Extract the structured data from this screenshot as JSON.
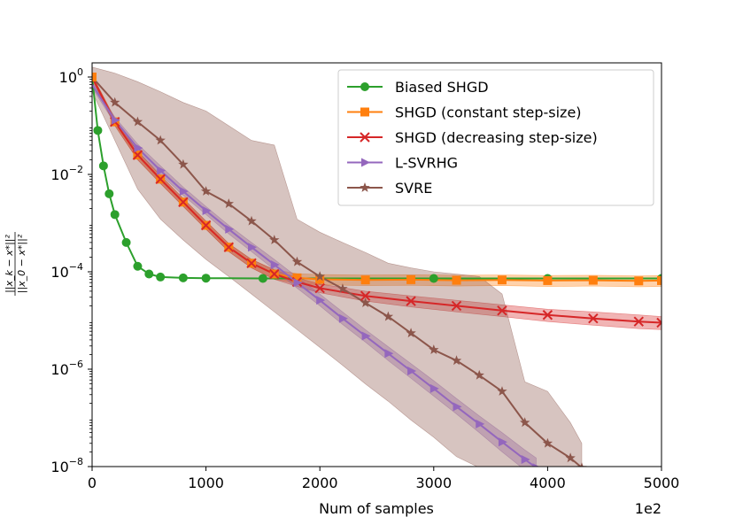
{
  "chart_data": {
    "type": "line",
    "title": "",
    "xlabel": "Num of samples",
    "x_offset_label": "1e2",
    "ylabel_numerator": "||x_k − x*||²",
    "ylabel_denominator": "||x_0 − x*||²",
    "yscale": "log",
    "xlim": [
      0,
      5000
    ],
    "ylim": [
      1e-08,
      2
    ],
    "x_ticks": [
      0,
      1000,
      2000,
      3000,
      4000,
      5000
    ],
    "x_tick_labels": [
      "0",
      "1000",
      "2000",
      "3000",
      "4000",
      "5000"
    ],
    "y_ticks": [
      1,
      0.01,
      0.0001,
      1e-06,
      1e-08
    ],
    "y_tick_labels": [
      {
        "base": "10",
        "exp": "0"
      },
      {
        "base": "10",
        "exp": "−2"
      },
      {
        "base": "10",
        "exp": "−4"
      },
      {
        "base": "10",
        "exp": "−6"
      },
      {
        "base": "10",
        "exp": "−8"
      }
    ],
    "grid": false,
    "legend_position": "top-right",
    "series": [
      {
        "name": "Biased SHGD",
        "color": "#2ca02c",
        "marker": "circle",
        "x": [
          0,
          50,
          100,
          150,
          200,
          300,
          400,
          500,
          600,
          800,
          1000,
          1500,
          2000,
          3000,
          4000,
          5000
        ],
        "y": [
          1,
          0.08,
          0.015,
          0.004,
          0.0015,
          0.0004,
          0.00013,
          9e-05,
          7.8e-05,
          7.5e-05,
          7.4e-05,
          7.3e-05,
          7.3e-05,
          7.3e-05,
          7.3e-05,
          7.3e-05
        ],
        "band_lower": [],
        "band_upper": []
      },
      {
        "name": "SHGD (constant step-size)",
        "color": "#ff7f0e",
        "marker": "square",
        "x": [
          0,
          200,
          400,
          600,
          800,
          1000,
          1200,
          1400,
          1600,
          1800,
          2000,
          2400,
          2800,
          3200,
          3600,
          4000,
          4400,
          4800,
          5000
        ],
        "y": [
          1,
          0.12,
          0.025,
          0.008,
          0.0027,
          0.0009,
          0.00032,
          0.00015,
          9e-05,
          7.5e-05,
          7e-05,
          6.8e-05,
          6.9e-05,
          6.7e-05,
          6.8e-05,
          6.6e-05,
          6.7e-05,
          6.5e-05,
          6.6e-05
        ],
        "band_lower": [
          0.9,
          0.1,
          0.02,
          0.0065,
          0.0022,
          0.00075,
          0.00026,
          0.00012,
          7e-05,
          5.8e-05,
          5.4e-05,
          5.2e-05,
          5.3e-05,
          5.1e-05,
          5.2e-05,
          5e-05,
          5.1e-05,
          4.9e-05,
          5e-05
        ],
        "band_upper": [
          1.1,
          0.14,
          0.03,
          0.0095,
          0.0032,
          0.0011,
          0.00038,
          0.00018,
          0.00011,
          9.2e-05,
          8.8e-05,
          8.6e-05,
          8.7e-05,
          8.5e-05,
          8.6e-05,
          8.4e-05,
          8.5e-05,
          8.3e-05,
          8.4e-05
        ]
      },
      {
        "name": "SHGD (decreasing step-size)",
        "color": "#d62728",
        "marker": "x",
        "x": [
          0,
          200,
          400,
          600,
          800,
          1000,
          1200,
          1400,
          1600,
          1800,
          2000,
          2400,
          2800,
          3200,
          3600,
          4000,
          4400,
          4800,
          5000
        ],
        "y": [
          1,
          0.12,
          0.025,
          0.008,
          0.0027,
          0.0009,
          0.00032,
          0.00015,
          9e-05,
          6.2e-05,
          4.6e-05,
          3.2e-05,
          2.5e-05,
          2e-05,
          1.6e-05,
          1.3e-05,
          1.1e-05,
          9.5e-06,
          9e-06
        ],
        "band_lower": [
          0.9,
          0.1,
          0.02,
          0.0065,
          0.0022,
          0.00075,
          0.00026,
          0.00012,
          7e-05,
          5e-05,
          3.7e-05,
          2.5e-05,
          1.9e-05,
          1.5e-05,
          1.2e-05,
          9.5e-06,
          8e-06,
          6.8e-06,
          6.5e-06
        ],
        "band_upper": [
          1.1,
          0.14,
          0.03,
          0.0095,
          0.0032,
          0.0011,
          0.00038,
          0.00018,
          0.00011,
          7.5e-05,
          5.6e-05,
          4e-05,
          3.2e-05,
          2.6e-05,
          2.1e-05,
          1.7e-05,
          1.5e-05,
          1.3e-05,
          1.2e-05
        ]
      },
      {
        "name": "L-SVRHG",
        "color": "#9467bd",
        "marker": "triangle-right",
        "x": [
          0,
          200,
          400,
          600,
          800,
          1000,
          1200,
          1400,
          1600,
          1800,
          2000,
          2200,
          2400,
          2600,
          2800,
          3000,
          3200,
          3400,
          3600,
          3800,
          3900
        ],
        "y": [
          0.7,
          0.13,
          0.035,
          0.012,
          0.0045,
          0.0018,
          0.00075,
          0.00032,
          0.00014,
          6e-05,
          2.6e-05,
          1.1e-05,
          4.8e-06,
          2.1e-06,
          9.2e-07,
          4e-07,
          1.7e-07,
          7.5e-08,
          3.2e-08,
          1.4e-08,
          9.5e-09
        ],
        "band_lower": [
          0.6,
          0.11,
          0.03,
          0.01,
          0.0037,
          0.0015,
          0.0006,
          0.00026,
          0.00011,
          4.6e-05,
          2e-05,
          8.3e-06,
          3.6e-06,
          1.5e-06,
          6.5e-07,
          2.8e-07,
          1.2e-07,
          5e-08,
          2e-08,
          8.5e-09,
          6e-09
        ],
        "band_upper": [
          0.8,
          0.15,
          0.042,
          0.015,
          0.0055,
          0.0022,
          0.0009,
          0.0004,
          0.00018,
          7.8e-05,
          3.5e-05,
          1.5e-05,
          6.5e-06,
          2.9e-06,
          1.3e-06,
          5.8e-07,
          2.5e-07,
          1.1e-07,
          5e-08,
          2.2e-08,
          1.5e-08
        ]
      },
      {
        "name": "SVRE",
        "color": "#8c564b",
        "marker": "star",
        "x": [
          0,
          200,
          400,
          600,
          800,
          1000,
          1200,
          1400,
          1600,
          1800,
          2000,
          2200,
          2400,
          2600,
          2800,
          3000,
          3200,
          3400,
          3600,
          3800,
          4000,
          4200,
          4300
        ],
        "y": [
          1,
          0.3,
          0.12,
          0.05,
          0.016,
          0.0045,
          0.0025,
          0.0011,
          0.00045,
          0.00016,
          8e-05,
          4.5e-05,
          2.3e-05,
          1.2e-05,
          5.5e-06,
          2.5e-06,
          1.5e-06,
          7.5e-07,
          3.5e-07,
          8e-08,
          3e-08,
          1.5e-08,
          9.5e-09
        ],
        "band_lower": [
          0.5,
          0.05,
          0.005,
          0.0012,
          0.00045,
          0.00018,
          8e-05,
          3.5e-05,
          1.5e-05,
          6.5e-06,
          2.8e-06,
          1.2e-06,
          5e-07,
          2.2e-07,
          9e-08,
          4e-08,
          1.6e-08,
          9.5e-09,
          9.5e-09,
          9.5e-09,
          9.5e-09,
          9.5e-09,
          9.5e-09
        ],
        "band_upper": [
          1.6,
          1.2,
          0.8,
          0.5,
          0.3,
          0.2,
          0.1,
          0.05,
          0.04,
          0.0012,
          0.00065,
          0.0004,
          0.00025,
          0.00015,
          0.00012,
          0.0001,
          9e-05,
          8e-05,
          3.5e-05,
          5.5e-07,
          3.5e-07,
          8e-08,
          3e-08
        ]
      }
    ]
  }
}
